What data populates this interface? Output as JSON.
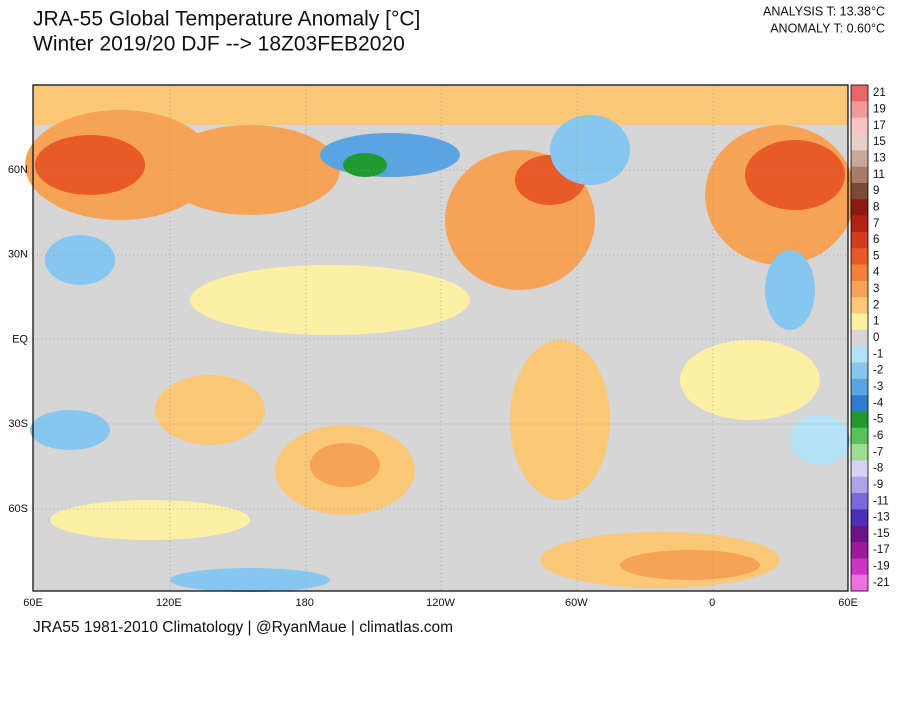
{
  "header": {
    "title": "JRA-55 Global Temperature Anomaly [°C]",
    "subtitle": "Winter 2019/20 DJF --> 18Z03FEB2020",
    "analysis": "ANALYSIS T: 13.38°C",
    "anomaly": "ANOMALY T: 0.60°C"
  },
  "map": {
    "lon_labels": [
      "60E",
      "120E",
      "180",
      "120W",
      "60W",
      "0",
      "60E"
    ],
    "lat_labels": [
      "60N",
      "30N",
      "EQ",
      "30S",
      "60S"
    ]
  },
  "colorbar": [
    {
      "label": "21",
      "color": "#e8686a"
    },
    {
      "label": "19",
      "color": "#f09a9a"
    },
    {
      "label": "17",
      "color": "#f6c4c2"
    },
    {
      "label": "15",
      "color": "#e8d0c8"
    },
    {
      "label": "13",
      "color": "#c8a896"
    },
    {
      "label": "11",
      "color": "#a87c66"
    },
    {
      "label": "9",
      "color": "#7a4a36"
    },
    {
      "label": "8",
      "color": "#8c1a10"
    },
    {
      "label": "7",
      "color": "#b02214"
    },
    {
      "label": "6",
      "color": "#d33a1e"
    },
    {
      "label": "5",
      "color": "#e85a28"
    },
    {
      "label": "4",
      "color": "#f27f3a"
    },
    {
      "label": "3",
      "color": "#f7a355"
    },
    {
      "label": "2",
      "color": "#fbc878"
    },
    {
      "label": "1",
      "color": "#fdf0a4"
    },
    {
      "label": "0",
      "color": "#d6d6d6"
    },
    {
      "label": "-1",
      "color": "#b4e2f6"
    },
    {
      "label": "-2",
      "color": "#86c6ef"
    },
    {
      "label": "-3",
      "color": "#5aa4e2"
    },
    {
      "label": "-4",
      "color": "#2e7cd0"
    },
    {
      "label": "-5",
      "color": "#1e9a2e"
    },
    {
      "label": "-6",
      "color": "#56c25a"
    },
    {
      "label": "-7",
      "color": "#9edc94"
    },
    {
      "label": "-8",
      "color": "#d8d2f2"
    },
    {
      "label": "-9",
      "color": "#aea2ea"
    },
    {
      "label": "-11",
      "color": "#7c68d8"
    },
    {
      "label": "-13",
      "color": "#4a30b8"
    },
    {
      "label": "-15",
      "color": "#6a1488"
    },
    {
      "label": "-17",
      "color": "#9a1a9a"
    },
    {
      "label": "-19",
      "color": "#cc34c2"
    },
    {
      "label": "-21",
      "color": "#f070e0"
    }
  ],
  "footer": "JRA55 1981-2010 Climatology | @RyanMaue | climatlas.com"
}
